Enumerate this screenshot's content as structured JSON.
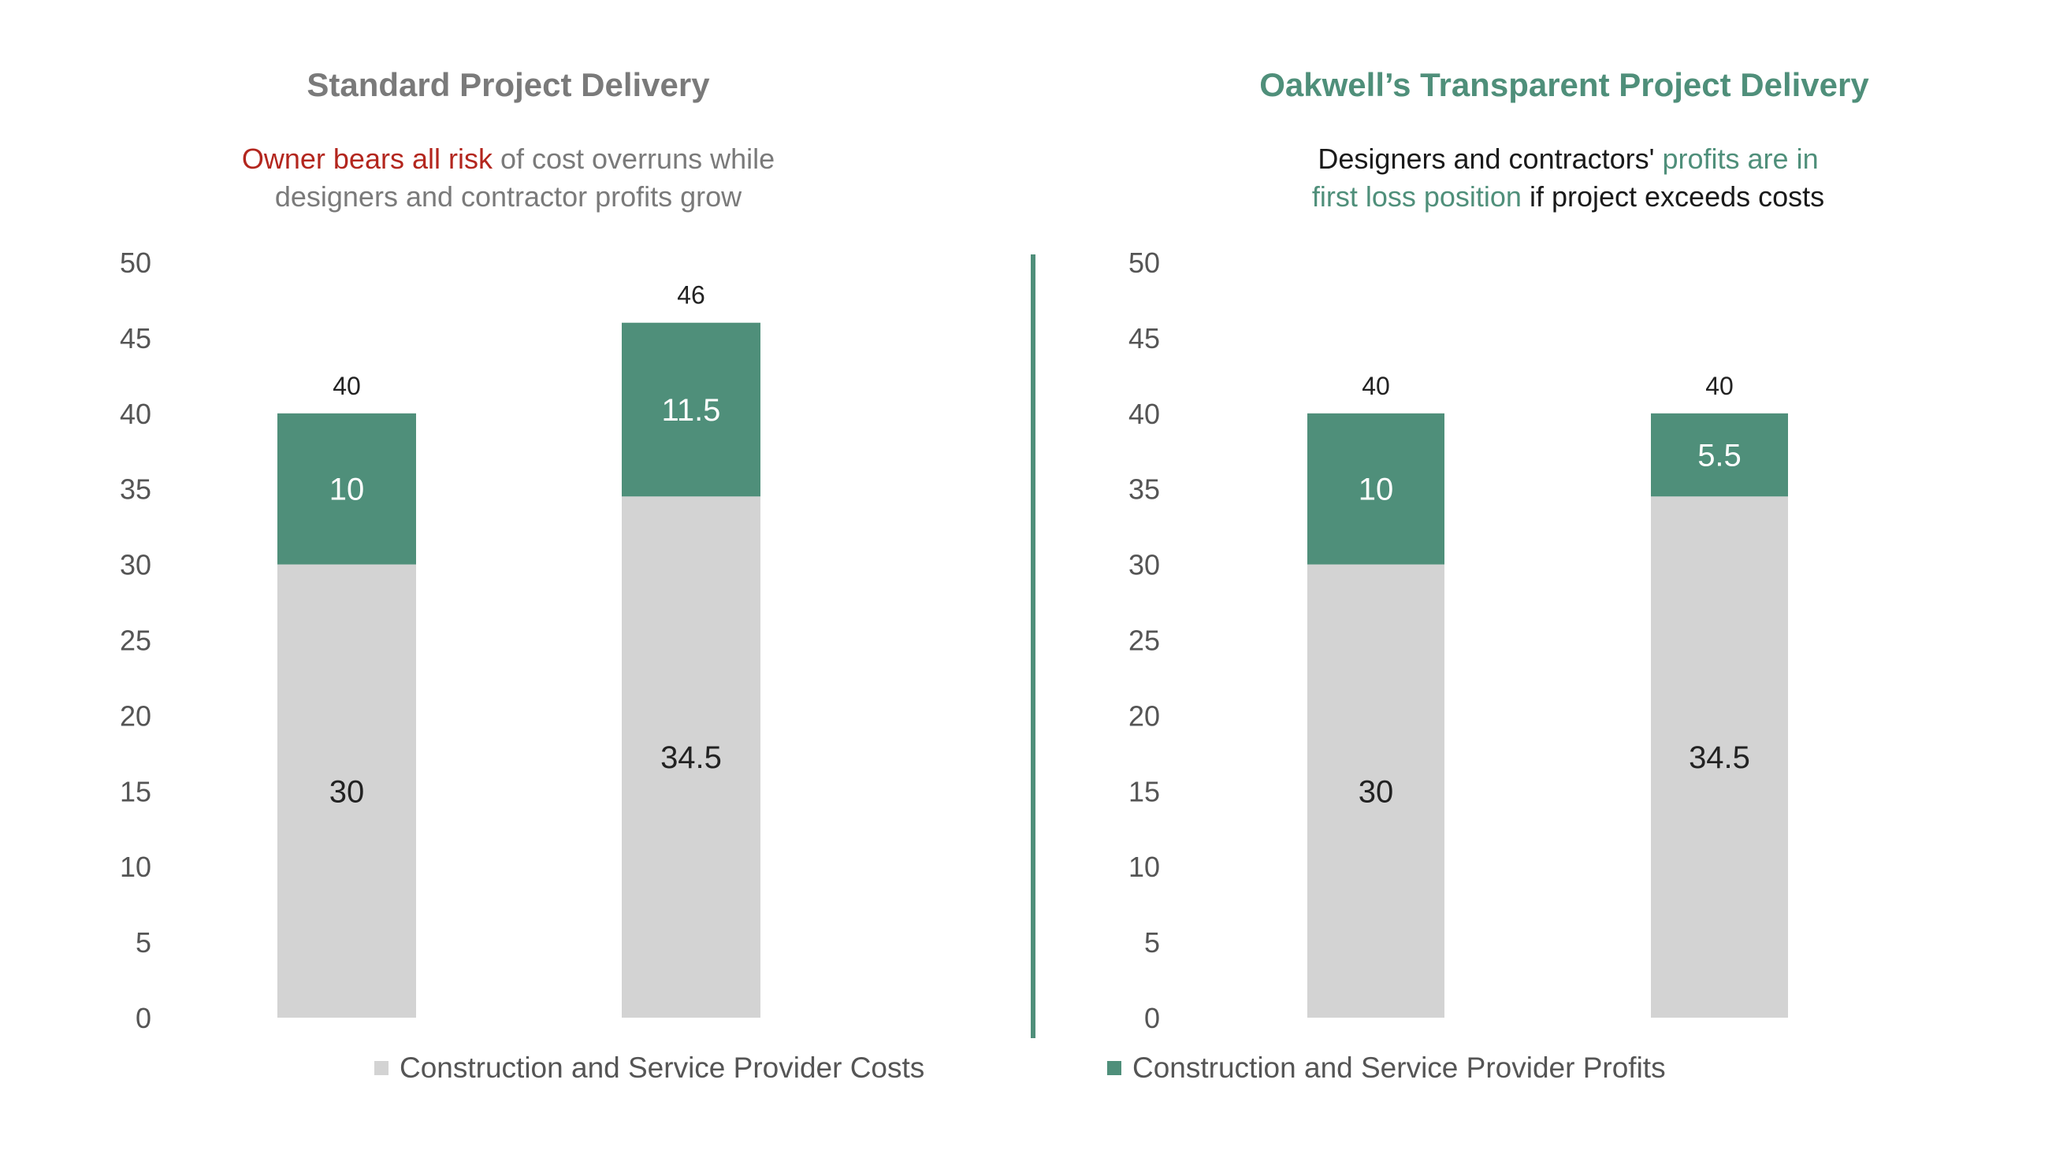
{
  "left_panel": {
    "title": "Standard Project Delivery",
    "subtitle_highlight": "Owner bears all risk",
    "subtitle_rest_1": " of cost overruns while",
    "subtitle_line2": "designers and contractor profits grow"
  },
  "right_panel": {
    "title": "Oakwell’s Transparent Project Delivery",
    "subtitle_part1": "Designers and contractors' ",
    "subtitle_highlight_1": "profits are in",
    "subtitle_highlight_2": "first loss position",
    "subtitle_part2": " if project exceeds costs"
  },
  "legend": {
    "costs": "Construction and Service Provider Costs",
    "profits": "Construction and Service Provider Profits"
  },
  "colors": {
    "costs": "#d3d3d3",
    "profits": "#4f8f7a",
    "divider": "#4f8f7a"
  },
  "chart_data": [
    {
      "type": "bar",
      "stacked": true,
      "title": "Standard Project Delivery",
      "ylim": [
        0,
        50
      ],
      "yticks": [
        0,
        5,
        10,
        15,
        20,
        25,
        30,
        35,
        40,
        45,
        50
      ],
      "grid": false,
      "categories": [
        "",
        ""
      ],
      "series": [
        {
          "name": "Construction and Service Provider Costs",
          "values": [
            30,
            34.5
          ]
        },
        {
          "name": "Construction and Service Provider Profits",
          "values": [
            10,
            11.5
          ]
        }
      ],
      "totals": [
        40,
        46
      ],
      "legend": "bottom"
    },
    {
      "type": "bar",
      "stacked": true,
      "title": "Oakwell’s Transparent Project Delivery",
      "ylim": [
        0,
        50
      ],
      "yticks": [
        0,
        5,
        10,
        15,
        20,
        25,
        30,
        35,
        40,
        45,
        50
      ],
      "grid": false,
      "categories": [
        "",
        ""
      ],
      "series": [
        {
          "name": "Construction and Service Provider Costs",
          "values": [
            30,
            34.5
          ]
        },
        {
          "name": "Construction and Service Provider Profits",
          "values": [
            10,
            5.5
          ]
        }
      ],
      "totals": [
        40,
        40
      ],
      "legend": "bottom"
    }
  ]
}
